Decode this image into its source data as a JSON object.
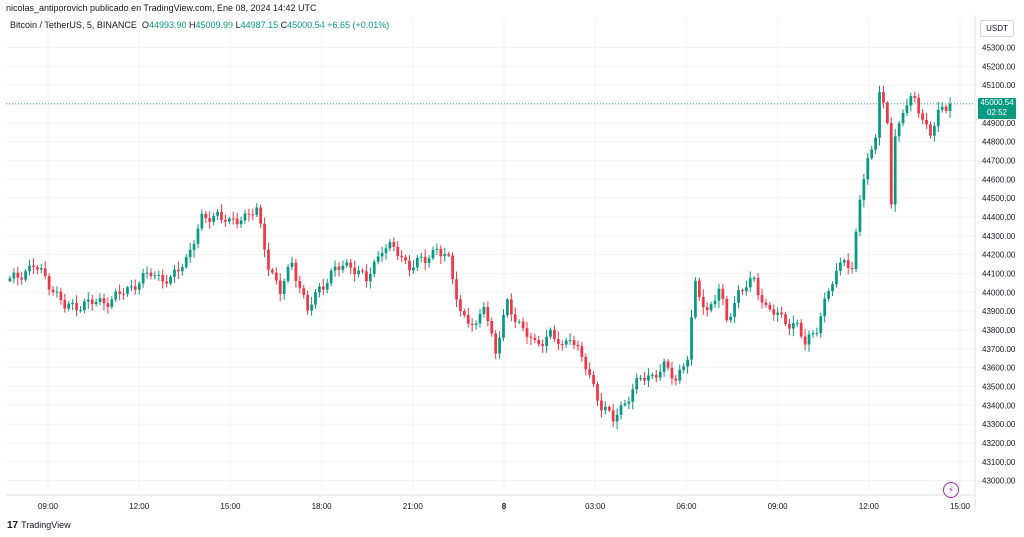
{
  "header": {
    "text": "nicolas_antiporovich publicado en TradingView.com, Ene 08, 2024 14:42 UTC"
  },
  "legend": {
    "symbol": "Bitcoin / TetherUS, 5, BINANCE",
    "open_label": "O",
    "open": "44993.90",
    "high_label": "H",
    "high": "45009.99",
    "low_label": "L",
    "low": "44987.15",
    "close_label": "C",
    "close": "45000.54",
    "change": "+6.65 (+0.01%)"
  },
  "currency": "USDT",
  "last_price": {
    "value": "45000.54",
    "countdown": "02:52"
  },
  "footer": {
    "logo_mark": "17",
    "brand": "TradingView"
  },
  "colors": {
    "up": "#089981",
    "down": "#f23645",
    "grid": "#f0f3fa",
    "axis_text": "#131722"
  },
  "chart_data": {
    "type": "candlestick",
    "interval": "5m",
    "x_ticks": [
      "09:00",
      "12:00",
      "15:00",
      "18:00",
      "21:00",
      "8",
      "03:00",
      "06:00",
      "09:00",
      "12:00",
      "15:00"
    ],
    "y_ticks": [
      43000,
      43100,
      43200,
      43300,
      43400,
      43500,
      43600,
      43700,
      43800,
      43900,
      44000,
      44100,
      44200,
      44300,
      44400,
      44500,
      44600,
      44700,
      44800,
      44900,
      45000,
      45100,
      45200,
      45300
    ],
    "ylim": [
      42950,
      45350
    ],
    "close_path": [
      [
        0,
        44060
      ],
      [
        6,
        44140
      ],
      [
        9,
        44080
      ],
      [
        14,
        43920
      ],
      [
        20,
        43940
      ],
      [
        26,
        43960
      ],
      [
        31,
        44030
      ],
      [
        36,
        44100
      ],
      [
        41,
        44060
      ],
      [
        45,
        44180
      ],
      [
        49,
        44380
      ],
      [
        53,
        44420
      ],
      [
        56,
        44360
      ],
      [
        59,
        44400
      ],
      [
        63,
        44430
      ],
      [
        66,
        44150
      ],
      [
        69,
        44000
      ],
      [
        72,
        44160
      ],
      [
        76,
        43900
      ],
      [
        79,
        44020
      ],
      [
        83,
        44120
      ],
      [
        87,
        44150
      ],
      [
        91,
        44060
      ],
      [
        95,
        44240
      ],
      [
        98,
        44230
      ],
      [
        102,
        44140
      ],
      [
        106,
        44170
      ],
      [
        109,
        44240
      ],
      [
        112,
        44160
      ],
      [
        115,
        43900
      ],
      [
        119,
        43800
      ],
      [
        121,
        43950
      ],
      [
        124,
        43680
      ],
      [
        127,
        43940
      ],
      [
        131,
        43800
      ],
      [
        134,
        43720
      ],
      [
        138,
        43780
      ],
      [
        141,
        43700
      ],
      [
        143,
        43780
      ],
      [
        147,
        43600
      ],
      [
        151,
        43400
      ],
      [
        154,
        43320
      ],
      [
        157,
        43420
      ],
      [
        161,
        43540
      ],
      [
        164,
        43560
      ],
      [
        167,
        43600
      ],
      [
        170,
        43540
      ],
      [
        173,
        43660
      ],
      [
        175,
        44030
      ],
      [
        178,
        43900
      ],
      [
        181,
        44010
      ],
      [
        183,
        43850
      ],
      [
        186,
        44000
      ],
      [
        190,
        44060
      ],
      [
        193,
        43920
      ],
      [
        197,
        43860
      ],
      [
        201,
        43820
      ],
      [
        203,
        43720
      ],
      [
        206,
        43820
      ],
      [
        209,
        44000
      ],
      [
        213,
        44200
      ],
      [
        215,
        44100
      ],
      [
        217,
        44500
      ],
      [
        219,
        44700
      ],
      [
        221,
        44850
      ],
      [
        222,
        45050
      ],
      [
        224,
        44900
      ],
      [
        225,
        44480
      ],
      [
        226,
        44820
      ],
      [
        228,
        44980
      ],
      [
        231,
        45020
      ],
      [
        233,
        44920
      ],
      [
        235,
        44850
      ],
      [
        237,
        44940
      ],
      [
        240,
        45000
      ]
    ],
    "last_close": 45000.54,
    "open": 44993.9,
    "high": 45009.99,
    "low": 44987.15,
    "close": 45000.54
  }
}
